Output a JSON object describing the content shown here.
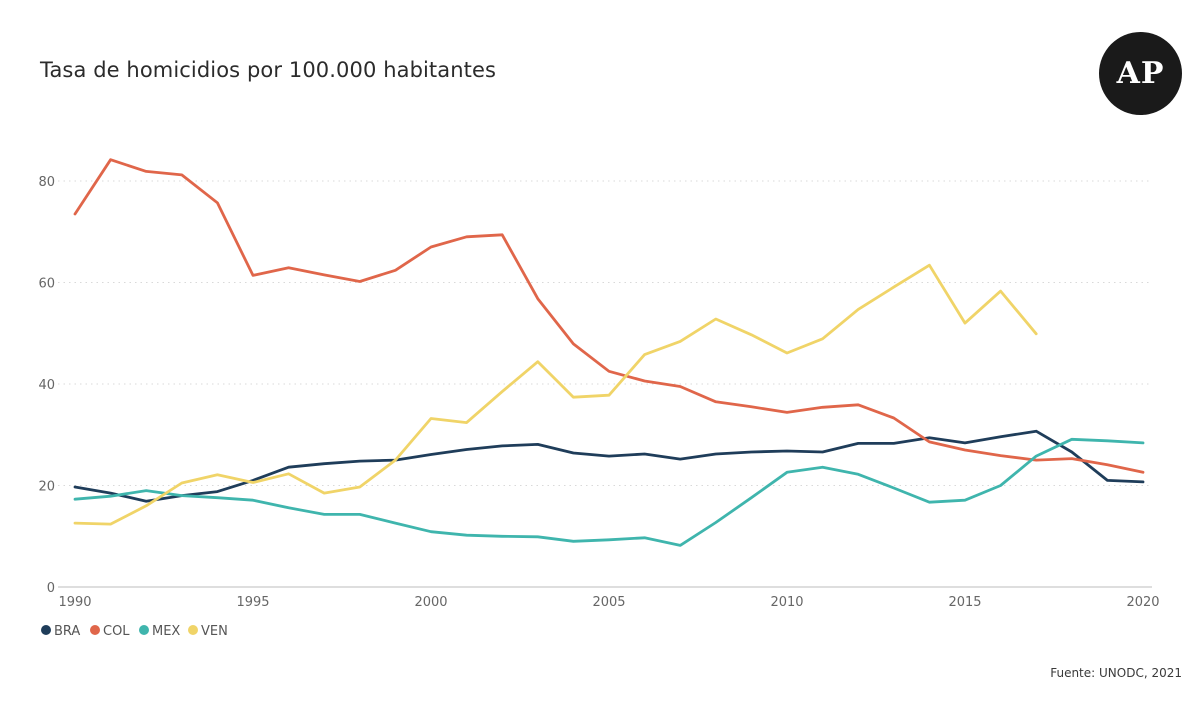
{
  "header": {
    "title": "Tasa de homicidios por 100.000 habitantes",
    "logo_text": "AP"
  },
  "footer": {
    "source": "Fuente: UNODC, 2021"
  },
  "chart_data": {
    "type": "line",
    "title": "Tasa de homicidios por 100.000 habitantes",
    "xlabel": "",
    "ylabel": "",
    "xlim": [
      1990,
      2020
    ],
    "ylim": [
      0,
      85
    ],
    "x_ticks": [
      1990,
      1995,
      2000,
      2005,
      2010,
      2015,
      2020
    ],
    "y_ticks": [
      0,
      20,
      40,
      60,
      80
    ],
    "grid": "horizontal-dotted",
    "legend_position": "bottom-left",
    "series": [
      {
        "name": "BRA",
        "color": "#1f3d5a",
        "x": [
          1990,
          1991,
          1992,
          1993,
          1994,
          1995,
          1996,
          1997,
          1998,
          1999,
          2000,
          2001,
          2002,
          2003,
          2004,
          2005,
          2006,
          2007,
          2008,
          2009,
          2010,
          2011,
          2012,
          2013,
          2014,
          2015,
          2016,
          2017,
          2018,
          2019,
          2020
        ],
        "values": [
          19.7,
          18.5,
          16.9,
          18.0,
          18.8,
          21.0,
          23.6,
          24.3,
          24.8,
          25.0,
          26.1,
          27.1,
          27.8,
          28.1,
          26.4,
          25.8,
          26.2,
          25.2,
          26.2,
          26.6,
          26.8,
          26.6,
          28.3,
          28.3,
          29.4,
          28.4,
          29.6,
          30.7,
          26.6,
          21.0,
          20.7
        ]
      },
      {
        "name": "COL",
        "color": "#e0664a",
        "x": [
          1990,
          1991,
          1992,
          1993,
          1994,
          1995,
          1996,
          1997,
          1998,
          1999,
          2000,
          2001,
          2002,
          2003,
          2004,
          2005,
          2006,
          2007,
          2008,
          2009,
          2010,
          2011,
          2012,
          2013,
          2014,
          2015,
          2016,
          2017,
          2018,
          2019,
          2020
        ],
        "values": [
          73.5,
          84.2,
          81.9,
          81.2,
          75.7,
          61.4,
          62.9,
          61.5,
          60.2,
          62.4,
          67.0,
          69.0,
          69.4,
          56.8,
          47.9,
          42.5,
          40.6,
          39.5,
          36.5,
          35.5,
          34.4,
          35.4,
          35.9,
          33.3,
          28.6,
          27.0,
          25.9,
          25.0,
          25.3,
          24.1,
          22.6
        ]
      },
      {
        "name": "MEX",
        "color": "#3fb5ad",
        "x": [
          1990,
          1991,
          1992,
          1993,
          1994,
          1995,
          1996,
          1997,
          1998,
          1999,
          2000,
          2001,
          2002,
          2003,
          2004,
          2005,
          2006,
          2007,
          2008,
          2009,
          2010,
          2011,
          2012,
          2013,
          2014,
          2015,
          2016,
          2017,
          2018,
          2019,
          2020
        ],
        "values": [
          17.3,
          17.9,
          19.0,
          18.0,
          17.6,
          17.1,
          15.6,
          14.3,
          14.3,
          12.6,
          10.9,
          10.2,
          10.0,
          9.9,
          9.0,
          9.3,
          9.7,
          8.2,
          12.7,
          17.6,
          22.6,
          23.6,
          22.2,
          19.5,
          16.7,
          17.1,
          20.0,
          25.8,
          29.1,
          28.8,
          28.4
        ]
      },
      {
        "name": "VEN",
        "color": "#f0d468",
        "x": [
          1990,
          1991,
          1992,
          1993,
          1994,
          1995,
          1996,
          1997,
          1998,
          1999,
          2000,
          2001,
          2002,
          2003,
          2004,
          2005,
          2006,
          2007,
          2008,
          2009,
          2010,
          2011,
          2012,
          2013,
          2014,
          2015,
          2016,
          2017
        ],
        "values": [
          12.6,
          12.4,
          16.0,
          20.5,
          22.1,
          20.6,
          22.3,
          18.5,
          19.7,
          25.0,
          33.2,
          32.4,
          38.5,
          44.4,
          37.4,
          37.8,
          45.8,
          48.4,
          52.8,
          49.7,
          46.1,
          48.9,
          54.7,
          59.1,
          63.4,
          52.0,
          58.3,
          49.9
        ]
      }
    ]
  }
}
